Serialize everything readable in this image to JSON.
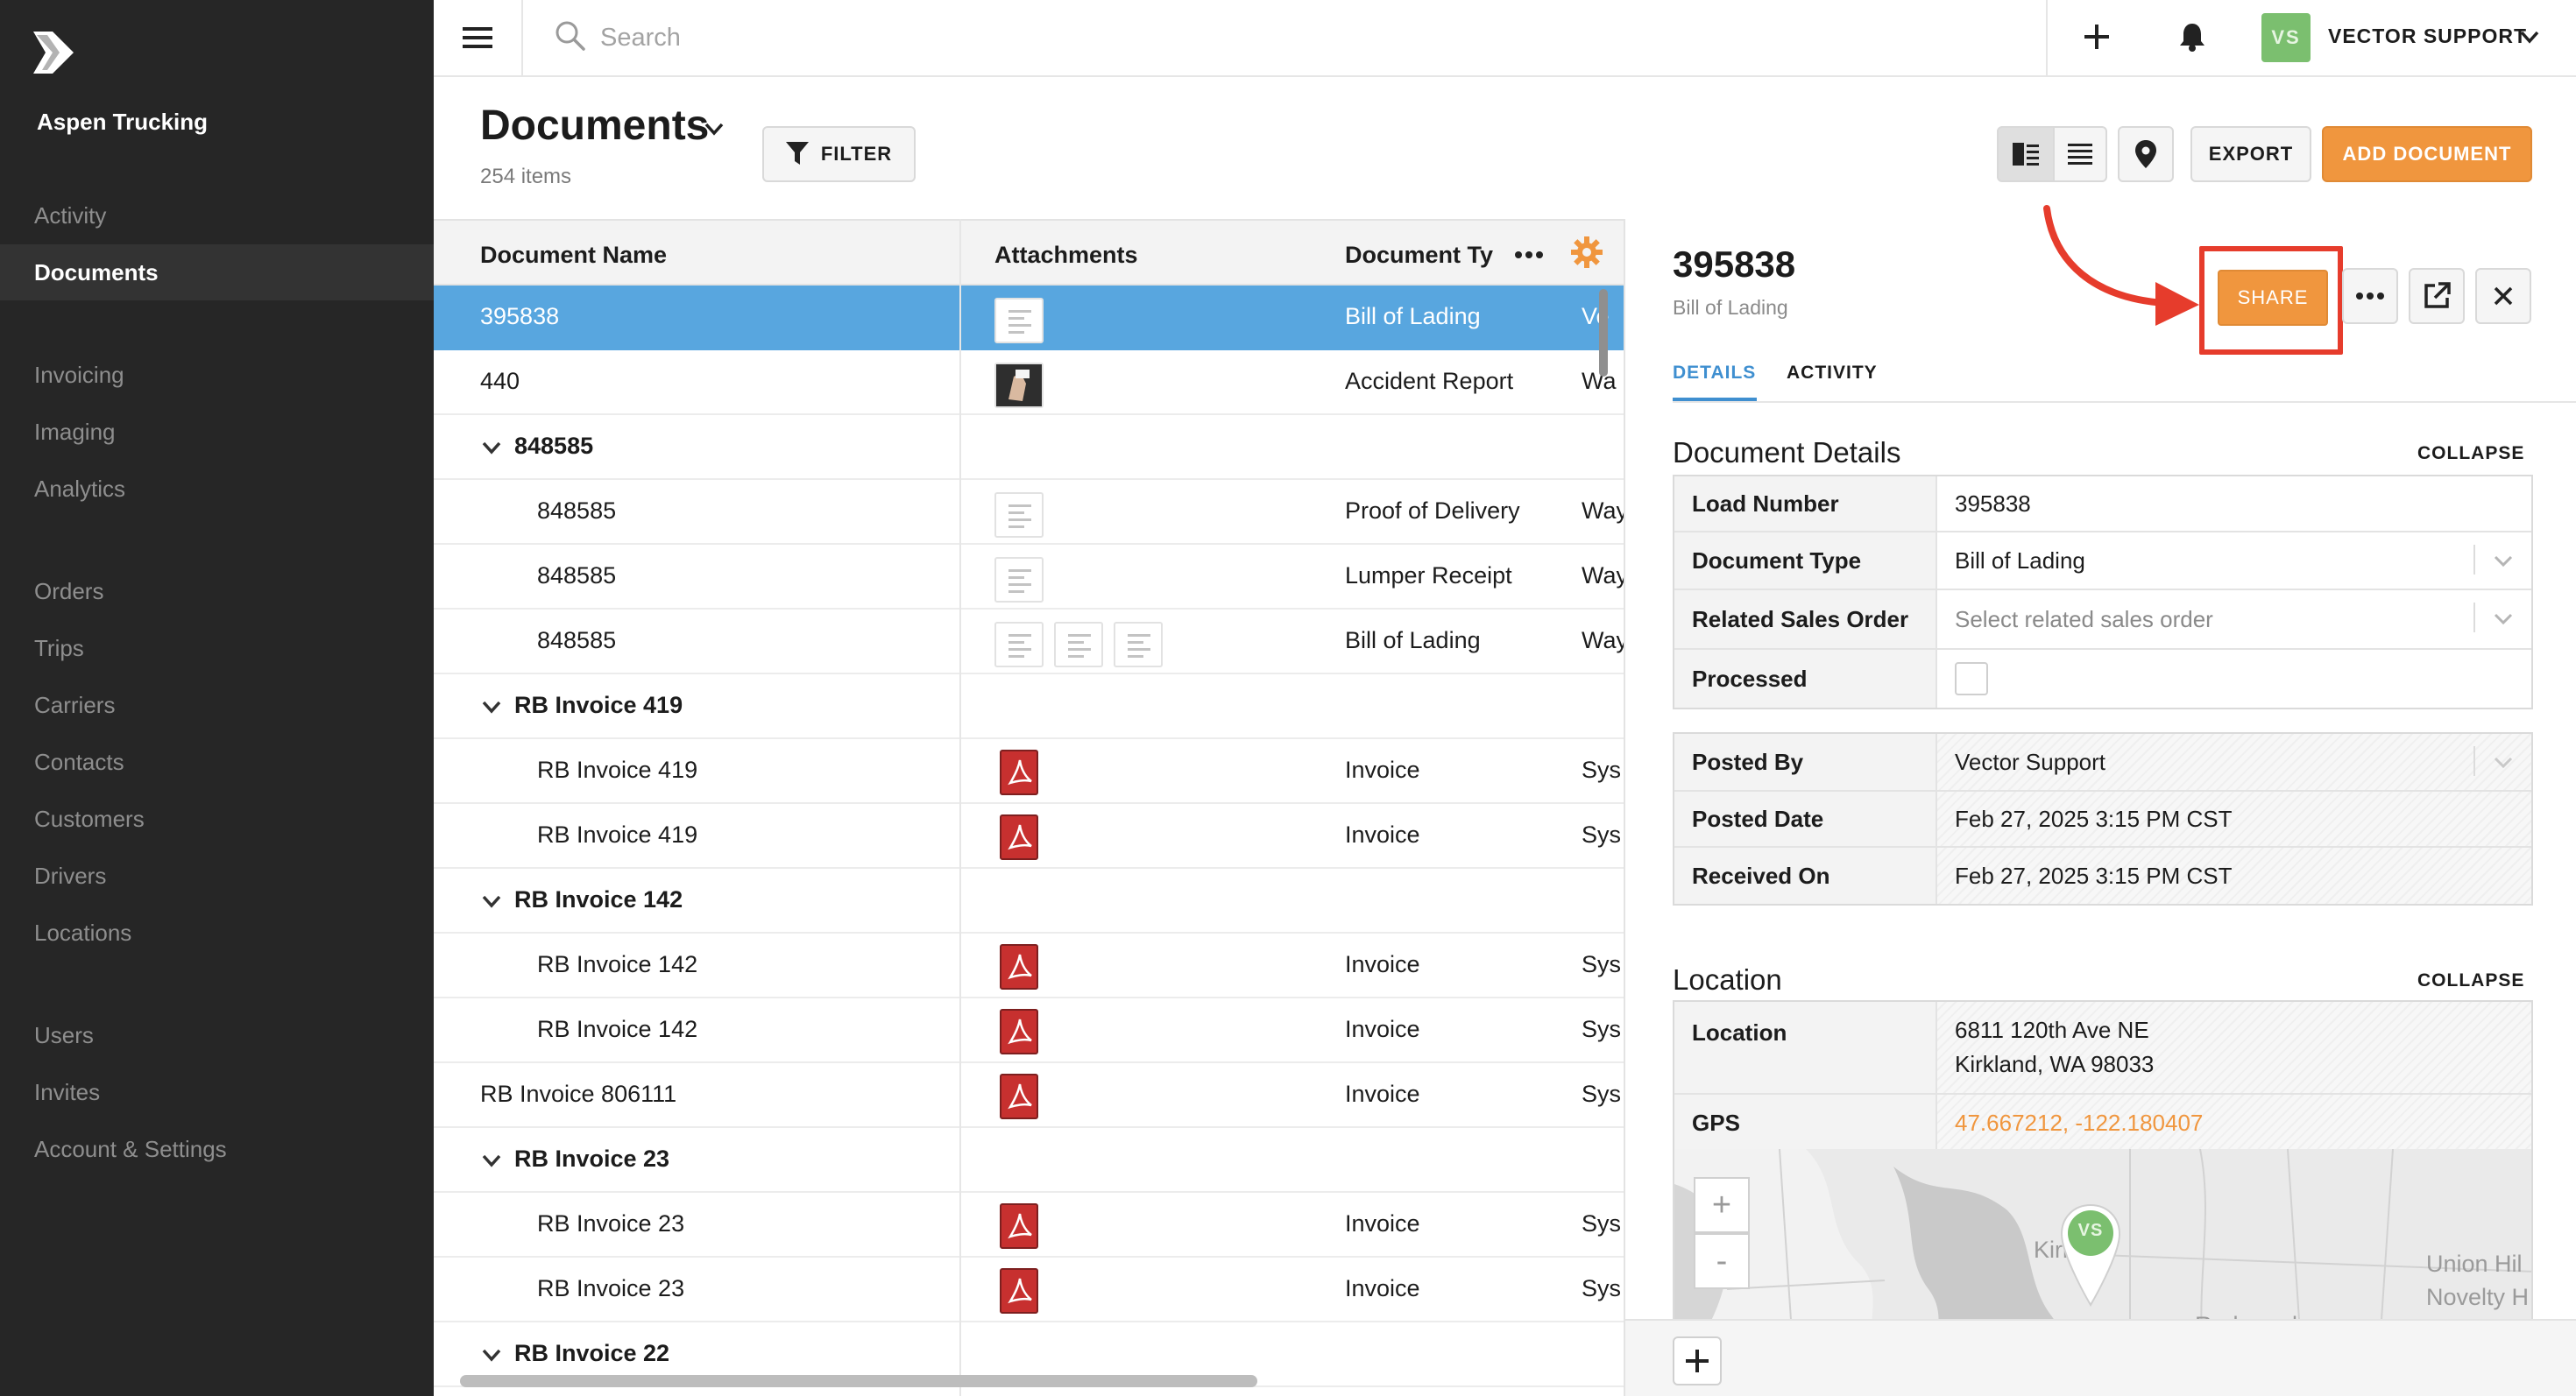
{
  "sidebar": {
    "company": "Aspen Trucking",
    "items": [
      {
        "label": "Activity",
        "active": false
      },
      {
        "label": "Documents",
        "active": true
      },
      {
        "label": "Invoicing",
        "active": false
      },
      {
        "label": "Imaging",
        "active": false
      },
      {
        "label": "Analytics",
        "active": false
      },
      {
        "label": "Orders",
        "active": false
      },
      {
        "label": "Trips",
        "active": false
      },
      {
        "label": "Carriers",
        "active": false
      },
      {
        "label": "Contacts",
        "active": false
      },
      {
        "label": "Customers",
        "active": false
      },
      {
        "label": "Drivers",
        "active": false
      },
      {
        "label": "Locations",
        "active": false
      },
      {
        "label": "Users",
        "active": false
      },
      {
        "label": "Invites",
        "active": false
      },
      {
        "label": "Account & Settings",
        "active": false
      }
    ]
  },
  "topbar": {
    "search_placeholder": "Search",
    "user_initials": "VS",
    "user_name": "VECTOR SUPPORT"
  },
  "header": {
    "title": "Documents",
    "count": "254 items",
    "filter_label": "FILTER",
    "export_label": "EXPORT",
    "add_label": "ADD DOCUMENT"
  },
  "table": {
    "columns": [
      "Document Name",
      "Attachments",
      "Document Ty"
    ],
    "rows": [
      {
        "kind": "item",
        "name": "395838",
        "attach": "doc1",
        "type": "Bill of Lading",
        "extra": "Ve",
        "selected": true
      },
      {
        "kind": "item",
        "name": "440",
        "attach": "photo",
        "type": "Accident Report",
        "extra": "Wa"
      },
      {
        "kind": "group",
        "name": "848585"
      },
      {
        "kind": "child",
        "name": "848585",
        "attach": "doc1",
        "type": "Proof of Delivery",
        "extra": "Way"
      },
      {
        "kind": "child",
        "name": "848585",
        "attach": "doc1",
        "type": "Lumper Receipt",
        "extra": "Way"
      },
      {
        "kind": "child",
        "name": "848585",
        "attach": "doc3",
        "type": "Bill of Lading",
        "extra": "Way"
      },
      {
        "kind": "group",
        "name": "RB Invoice 419"
      },
      {
        "kind": "child",
        "name": "RB Invoice 419",
        "attach": "pdf",
        "type": "Invoice",
        "extra": "Sys"
      },
      {
        "kind": "child",
        "name": "RB Invoice 419",
        "attach": "pdf",
        "type": "Invoice",
        "extra": "Sys"
      },
      {
        "kind": "group",
        "name": "RB Invoice 142"
      },
      {
        "kind": "child",
        "name": "RB Invoice 142",
        "attach": "pdf",
        "type": "Invoice",
        "extra": "Sys"
      },
      {
        "kind": "child",
        "name": "RB Invoice 142",
        "attach": "pdf",
        "type": "Invoice",
        "extra": "Sys"
      },
      {
        "kind": "item",
        "name": "RB Invoice 806111",
        "attach": "pdf",
        "type": "Invoice",
        "extra": "Sys"
      },
      {
        "kind": "group",
        "name": "RB Invoice 23"
      },
      {
        "kind": "child",
        "name": "RB Invoice 23",
        "attach": "pdf",
        "type": "Invoice",
        "extra": "Sys"
      },
      {
        "kind": "child",
        "name": "RB Invoice 23",
        "attach": "pdf",
        "type": "Invoice",
        "extra": "Sys"
      },
      {
        "kind": "group",
        "name": "RB Invoice 22"
      }
    ]
  },
  "panel": {
    "doc_id": "395838",
    "doc_type": "Bill of Lading",
    "share_label": "SHARE",
    "tabs": [
      "DETAILS",
      "ACTIVITY"
    ],
    "details_title": "Document Details",
    "collapse_label": "COLLAPSE",
    "details": [
      {
        "label": "Load Number",
        "value": "395838"
      },
      {
        "label": "Document Type",
        "value": "Bill of Lading"
      },
      {
        "label": "Related Sales Order",
        "value": "Select related sales order"
      },
      {
        "label": "Processed",
        "value": ""
      }
    ],
    "posted": [
      {
        "label": "Posted By",
        "value": "Vector Support"
      },
      {
        "label": "Posted Date",
        "value": "Feb 27, 2025 3:15 PM CST"
      },
      {
        "label": "Received On",
        "value": "Feb 27, 2025 3:15 PM CST"
      }
    ],
    "location_title": "Location",
    "location_label": "Location",
    "address_line1": "6811 120th Ave NE",
    "address_line2": "Kirkland, WA 98033",
    "gps_label": "GPS",
    "gps_value": "47.667212, -122.180407",
    "map": {
      "zoom_in": "+",
      "zoom_out": "-",
      "labels": [
        "Kirk",
        "Union Hil",
        "Novelty H",
        "Redmond"
      ],
      "pin_initials": "VS"
    }
  },
  "colors": {
    "sidebar_bg": "#262626",
    "accent_orange": "#f0963e",
    "selected_row": "#58a6df",
    "tab_blue": "#3f8fd0",
    "highlight_red": "#e63c2c",
    "avatar_green": "#7bbf6f"
  }
}
